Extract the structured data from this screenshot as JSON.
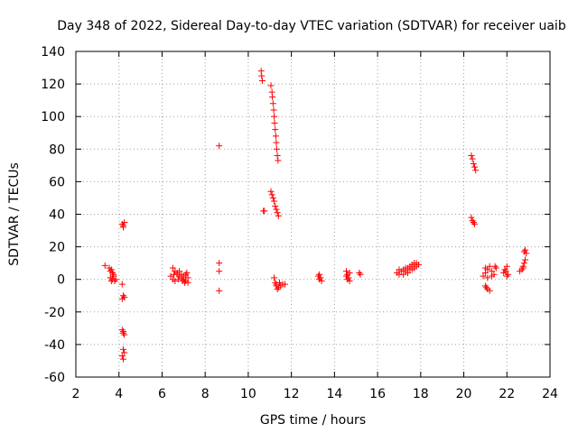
{
  "chart_data": {
    "type": "scatter",
    "title": "Day 348 of 2022, Sidereal Day-to-day VTEC variation (SDTVAR) for receiver uaib",
    "xlabel": "GPS time / hours",
    "ylabel": "SDTVAR / TECUs",
    "xlim": [
      2,
      24
    ],
    "ylim": [
      -60,
      140
    ],
    "xticks": [
      2,
      4,
      6,
      8,
      10,
      12,
      14,
      16,
      18,
      20,
      22,
      24
    ],
    "yticks": [
      -60,
      -40,
      -20,
      0,
      20,
      40,
      60,
      80,
      100,
      120,
      140
    ],
    "grid": true,
    "marker": "+",
    "color": "#ff0000",
    "series": [
      {
        "name": "SDTVAR",
        "points": [
          [
            3.35,
            8.5
          ],
          [
            3.55,
            7
          ],
          [
            3.6,
            5
          ],
          [
            3.65,
            6
          ],
          [
            3.7,
            4
          ],
          [
            3.75,
            2
          ],
          [
            3.6,
            1
          ],
          [
            3.7,
            0
          ],
          [
            3.65,
            -1
          ],
          [
            3.8,
            -1
          ],
          [
            3.75,
            3
          ],
          [
            3.85,
            0
          ],
          [
            4.15,
            34
          ],
          [
            4.2,
            33
          ],
          [
            4.25,
            35
          ],
          [
            4.2,
            32
          ],
          [
            4.15,
            -3
          ],
          [
            4.2,
            -10
          ],
          [
            4.25,
            -11
          ],
          [
            4.15,
            -12
          ],
          [
            4.15,
            -31
          ],
          [
            4.2,
            -33
          ],
          [
            4.25,
            -34
          ],
          [
            4.2,
            -32
          ],
          [
            4.2,
            -43
          ],
          [
            4.25,
            -45
          ],
          [
            4.15,
            -47
          ],
          [
            4.2,
            -49
          ],
          [
            6.5,
            7
          ],
          [
            6.6,
            5
          ],
          [
            6.7,
            4
          ],
          [
            6.8,
            2
          ],
          [
            6.9,
            1
          ],
          [
            7.0,
            0
          ],
          [
            7.1,
            -1
          ],
          [
            7.2,
            -2
          ],
          [
            6.5,
            0
          ],
          [
            6.6,
            -1
          ],
          [
            6.7,
            3
          ],
          [
            6.8,
            5
          ],
          [
            6.9,
            3
          ],
          [
            7.0,
            2
          ],
          [
            7.1,
            3
          ],
          [
            7.2,
            1
          ],
          [
            6.4,
            2
          ],
          [
            6.55,
            3
          ],
          [
            7.05,
            -2
          ],
          [
            7.15,
            4
          ],
          [
            6.75,
            0
          ],
          [
            6.95,
            -1
          ],
          [
            8.65,
            82
          ],
          [
            8.65,
            10
          ],
          [
            8.65,
            5
          ],
          [
            8.65,
            -7
          ],
          [
            10.6,
            128
          ],
          [
            10.62,
            125
          ],
          [
            10.65,
            122
          ],
          [
            11.05,
            119
          ],
          [
            11.1,
            115
          ],
          [
            11.12,
            112
          ],
          [
            11.15,
            108
          ],
          [
            11.18,
            104
          ],
          [
            11.2,
            100
          ],
          [
            11.22,
            96
          ],
          [
            11.25,
            92
          ],
          [
            11.28,
            88
          ],
          [
            11.3,
            84
          ],
          [
            11.32,
            80
          ],
          [
            11.35,
            76
          ],
          [
            11.38,
            73
          ],
          [
            10.7,
            42
          ],
          [
            10.75,
            42
          ],
          [
            11.05,
            54
          ],
          [
            11.1,
            52
          ],
          [
            11.15,
            50
          ],
          [
            11.2,
            48
          ],
          [
            11.25,
            45
          ],
          [
            11.3,
            43
          ],
          [
            11.35,
            41
          ],
          [
            11.4,
            39
          ],
          [
            11.2,
            1
          ],
          [
            11.25,
            -2
          ],
          [
            11.3,
            -4
          ],
          [
            11.35,
            -6
          ],
          [
            11.3,
            -3
          ],
          [
            11.4,
            -5
          ],
          [
            11.5,
            -4
          ],
          [
            11.6,
            -3
          ],
          [
            11.7,
            -3
          ],
          [
            11.45,
            -2
          ],
          [
            13.3,
            3
          ],
          [
            13.35,
            1
          ],
          [
            13.4,
            -1
          ],
          [
            13.3,
            0
          ],
          [
            13.25,
            2
          ],
          [
            14.55,
            5
          ],
          [
            14.6,
            3
          ],
          [
            14.65,
            1
          ],
          [
            14.7,
            -1
          ],
          [
            14.6,
            0
          ],
          [
            14.7,
            4
          ],
          [
            14.55,
            2
          ],
          [
            15.15,
            4
          ],
          [
            15.2,
            3
          ],
          [
            16.9,
            4
          ],
          [
            17.0,
            6
          ],
          [
            17.1,
            5
          ],
          [
            17.2,
            3
          ],
          [
            17.3,
            7
          ],
          [
            17.4,
            4
          ],
          [
            17.5,
            8
          ],
          [
            17.6,
            6
          ],
          [
            17.7,
            10
          ],
          [
            17.8,
            8
          ],
          [
            17.9,
            9
          ],
          [
            17.0,
            3
          ],
          [
            17.2,
            6
          ],
          [
            17.4,
            7
          ],
          [
            17.6,
            9
          ],
          [
            17.8,
            10
          ],
          [
            17.3,
            5
          ],
          [
            17.5,
            6
          ],
          [
            17.7,
            7
          ],
          [
            20.35,
            76
          ],
          [
            20.4,
            74
          ],
          [
            20.45,
            71
          ],
          [
            20.5,
            69
          ],
          [
            20.55,
            67
          ],
          [
            20.35,
            38
          ],
          [
            20.4,
            36
          ],
          [
            20.45,
            35
          ],
          [
            20.5,
            34
          ],
          [
            20.9,
            2
          ],
          [
            21.0,
            4
          ],
          [
            21.1,
            6
          ],
          [
            21.2,
            8
          ],
          [
            21.3,
            5
          ],
          [
            21.4,
            3
          ],
          [
            21.5,
            7
          ],
          [
            21.1,
            1
          ],
          [
            21.3,
            2
          ],
          [
            21.0,
            7
          ],
          [
            21.45,
            8
          ],
          [
            21.0,
            -4
          ],
          [
            21.05,
            -5
          ],
          [
            21.1,
            -6
          ],
          [
            21.2,
            -7
          ],
          [
            21.85,
            4
          ],
          [
            21.9,
            6
          ],
          [
            22.0,
            8
          ],
          [
            22.05,
            3
          ],
          [
            21.95,
            5
          ],
          [
            22.0,
            2
          ],
          [
            22.6,
            5
          ],
          [
            22.7,
            6
          ],
          [
            22.75,
            8
          ],
          [
            22.8,
            10
          ],
          [
            22.85,
            12
          ],
          [
            22.8,
            17
          ],
          [
            22.85,
            18
          ],
          [
            22.9,
            16
          ],
          [
            22.75,
            7
          ]
        ]
      }
    ]
  }
}
